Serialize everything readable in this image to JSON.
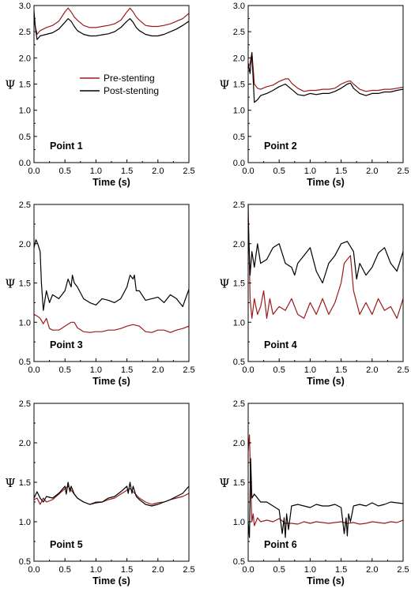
{
  "colors": {
    "pre": "#9b1b1b",
    "post": "#000000"
  },
  "legend": {
    "pre": "Pre-stenting",
    "post": "Post-stenting",
    "placement": "inside panel 1, center-right"
  },
  "chart_data": [
    {
      "type": "line",
      "panel_label": "Point 1",
      "xlabel": "Time (s)",
      "ylabel": "Ψ",
      "xlim": [
        0,
        2.5
      ],
      "ylim": [
        0,
        3.0
      ],
      "xticks": [
        "0.0",
        "0.5",
        "1.0",
        "1.5",
        "2.0",
        "2.5"
      ],
      "yticks": [
        "0.0",
        "0.5",
        "1.0",
        "1.5",
        "2.0",
        "2.5",
        "3.0"
      ],
      "series": [
        {
          "name": "Pre-stenting",
          "color": "#9b1b1b",
          "x": [
            0,
            0.02,
            0.05,
            0.1,
            0.2,
            0.3,
            0.4,
            0.5,
            0.55,
            0.6,
            0.65,
            0.7,
            0.8,
            0.9,
            1.0,
            1.1,
            1.2,
            1.3,
            1.4,
            1.5,
            1.55,
            1.6,
            1.65,
            1.7,
            1.8,
            1.9,
            2.0,
            2.1,
            2.2,
            2.3,
            2.4,
            2.5
          ],
          "y": [
            2.8,
            2.6,
            2.45,
            2.52,
            2.58,
            2.62,
            2.7,
            2.88,
            2.95,
            2.88,
            2.78,
            2.72,
            2.62,
            2.58,
            2.58,
            2.6,
            2.62,
            2.65,
            2.72,
            2.88,
            2.95,
            2.88,
            2.78,
            2.72,
            2.62,
            2.6,
            2.6,
            2.62,
            2.65,
            2.7,
            2.75,
            2.85
          ]
        },
        {
          "name": "Post-stenting",
          "color": "#000000",
          "x": [
            0,
            0.02,
            0.05,
            0.1,
            0.2,
            0.3,
            0.4,
            0.5,
            0.55,
            0.6,
            0.65,
            0.7,
            0.8,
            0.9,
            1.0,
            1.1,
            1.2,
            1.3,
            1.4,
            1.5,
            1.55,
            1.6,
            1.65,
            1.7,
            1.8,
            1.9,
            2.0,
            2.1,
            2.2,
            2.3,
            2.4,
            2.5
          ],
          "y": [
            2.9,
            2.6,
            2.35,
            2.42,
            2.45,
            2.48,
            2.55,
            2.68,
            2.75,
            2.7,
            2.6,
            2.52,
            2.45,
            2.42,
            2.42,
            2.44,
            2.46,
            2.5,
            2.58,
            2.7,
            2.75,
            2.68,
            2.58,
            2.52,
            2.45,
            2.42,
            2.42,
            2.45,
            2.5,
            2.55,
            2.62,
            2.7
          ]
        }
      ]
    },
    {
      "type": "line",
      "panel_label": "Point 2",
      "xlabel": "Time (s)",
      "ylabel": "Ψ",
      "xlim": [
        0,
        2.5
      ],
      "ylim": [
        0,
        3.0
      ],
      "xticks": [
        "0.0",
        "0.5",
        "1.0",
        "1.5",
        "2.0",
        "2.5"
      ],
      "yticks": [
        "0.0",
        "0.5",
        "1.0",
        "1.5",
        "2.0",
        "2.5",
        "3.0"
      ],
      "series": [
        {
          "name": "Pre-stenting",
          "color": "#9b1b1b",
          "x": [
            0,
            0.03,
            0.06,
            0.08,
            0.1,
            0.15,
            0.2,
            0.3,
            0.4,
            0.5,
            0.6,
            0.65,
            0.7,
            0.8,
            0.9,
            1.0,
            1.1,
            1.2,
            1.3,
            1.4,
            1.5,
            1.6,
            1.65,
            1.7,
            1.8,
            1.9,
            2.0,
            2.1,
            2.2,
            2.3,
            2.4,
            2.5
          ],
          "y": [
            1.8,
            1.9,
            2.1,
            1.8,
            1.5,
            1.42,
            1.4,
            1.45,
            1.48,
            1.55,
            1.6,
            1.6,
            1.52,
            1.42,
            1.36,
            1.38,
            1.38,
            1.4,
            1.4,
            1.42,
            1.5,
            1.55,
            1.56,
            1.5,
            1.4,
            1.36,
            1.38,
            1.38,
            1.4,
            1.4,
            1.42,
            1.44
          ]
        },
        {
          "name": "Post-stenting",
          "color": "#000000",
          "x": [
            0,
            0.03,
            0.06,
            0.08,
            0.1,
            0.15,
            0.2,
            0.3,
            0.4,
            0.5,
            0.6,
            0.7,
            0.8,
            0.9,
            1.0,
            1.1,
            1.2,
            1.3,
            1.4,
            1.5,
            1.6,
            1.65,
            1.7,
            1.8,
            1.9,
            2.0,
            2.1,
            2.2,
            2.3,
            2.4,
            2.5
          ],
          "y": [
            1.9,
            1.7,
            2.1,
            1.6,
            1.15,
            1.2,
            1.28,
            1.32,
            1.38,
            1.45,
            1.5,
            1.4,
            1.3,
            1.28,
            1.32,
            1.3,
            1.32,
            1.32,
            1.36,
            1.42,
            1.5,
            1.52,
            1.42,
            1.32,
            1.28,
            1.32,
            1.32,
            1.35,
            1.35,
            1.38,
            1.4
          ]
        }
      ]
    },
    {
      "type": "line",
      "panel_label": "Point 3",
      "xlabel": "Time (s)",
      "ylabel": "Ψ",
      "xlim": [
        0,
        2.5
      ],
      "ylim": [
        0.5,
        2.5
      ],
      "xticks": [
        "0.0",
        "0.5",
        "1.0",
        "1.5",
        "2.0",
        "2.5"
      ],
      "yticks": [
        "0.5",
        "1.0",
        "1.5",
        "2.0",
        "2.5"
      ],
      "series": [
        {
          "name": "Pre-stenting",
          "color": "#9b1b1b",
          "x": [
            0,
            0.05,
            0.1,
            0.15,
            0.2,
            0.25,
            0.3,
            0.4,
            0.5,
            0.6,
            0.65,
            0.7,
            0.8,
            0.9,
            1.0,
            1.1,
            1.2,
            1.3,
            1.4,
            1.5,
            1.6,
            1.7,
            1.8,
            1.9,
            2.0,
            2.1,
            2.2,
            2.3,
            2.4,
            2.5
          ],
          "y": [
            1.1,
            1.08,
            1.05,
            0.98,
            1.05,
            0.92,
            0.9,
            0.9,
            0.95,
            1.0,
            1.0,
            0.93,
            0.88,
            0.87,
            0.88,
            0.88,
            0.9,
            0.9,
            0.92,
            0.95,
            0.97,
            0.95,
            0.88,
            0.87,
            0.9,
            0.9,
            0.87,
            0.9,
            0.92,
            0.95
          ]
        },
        {
          "name": "Post-stenting",
          "color": "#000000",
          "x": [
            0,
            0.03,
            0.06,
            0.1,
            0.12,
            0.15,
            0.18,
            0.2,
            0.25,
            0.3,
            0.4,
            0.5,
            0.55,
            0.6,
            0.62,
            0.65,
            0.7,
            0.8,
            0.9,
            1.0,
            1.1,
            1.2,
            1.3,
            1.4,
            1.5,
            1.55,
            1.6,
            1.62,
            1.65,
            1.7,
            1.8,
            1.9,
            2.0,
            2.1,
            2.2,
            2.3,
            2.4,
            2.5
          ],
          "y": [
            1.95,
            2.05,
            2.0,
            1.9,
            1.5,
            1.15,
            1.3,
            1.4,
            1.25,
            1.35,
            1.3,
            1.4,
            1.55,
            1.45,
            1.6,
            1.5,
            1.45,
            1.3,
            1.25,
            1.22,
            1.3,
            1.28,
            1.25,
            1.3,
            1.45,
            1.6,
            1.55,
            1.6,
            1.4,
            1.4,
            1.28,
            1.3,
            1.32,
            1.25,
            1.35,
            1.3,
            1.2,
            1.42
          ]
        }
      ]
    },
    {
      "type": "line",
      "panel_label": "Point 4",
      "xlabel": "Time (s)",
      "ylabel": "Ψ",
      "xlim": [
        0,
        2.5
      ],
      "ylim": [
        0.5,
        2.5
      ],
      "xticks": [
        "0.0",
        "0.5",
        "1.0",
        "1.5",
        "2.0",
        "2.5"
      ],
      "yticks": [
        "0.5",
        "1.0",
        "1.5",
        "2.0",
        "2.5"
      ],
      "series": [
        {
          "name": "Pre-stenting",
          "color": "#9b1b1b",
          "x": [
            0,
            0.03,
            0.06,
            0.1,
            0.15,
            0.2,
            0.25,
            0.3,
            0.35,
            0.4,
            0.5,
            0.6,
            0.7,
            0.8,
            0.9,
            1.0,
            1.1,
            1.2,
            1.3,
            1.4,
            1.5,
            1.55,
            1.6,
            1.65,
            1.7,
            1.8,
            1.9,
            2.0,
            2.1,
            2.2,
            2.3,
            2.4,
            2.5
          ],
          "y": [
            2.5,
            1.3,
            1.05,
            1.3,
            1.1,
            1.2,
            1.4,
            1.05,
            1.3,
            1.1,
            1.2,
            1.15,
            1.3,
            1.1,
            1.05,
            1.25,
            1.1,
            1.3,
            1.1,
            1.25,
            1.5,
            1.75,
            1.8,
            1.85,
            1.4,
            1.1,
            1.25,
            1.1,
            1.3,
            1.15,
            1.2,
            1.05,
            1.3
          ]
        },
        {
          "name": "Post-stenting",
          "color": "#000000",
          "x": [
            0,
            0.03,
            0.06,
            0.1,
            0.15,
            0.2,
            0.3,
            0.4,
            0.5,
            0.6,
            0.7,
            0.75,
            0.8,
            0.9,
            1.0,
            1.1,
            1.2,
            1.3,
            1.4,
            1.5,
            1.6,
            1.7,
            1.75,
            1.8,
            1.9,
            2.0,
            2.1,
            2.2,
            2.3,
            2.4,
            2.5
          ],
          "y": [
            2.3,
            1.6,
            1.9,
            1.7,
            2.0,
            1.75,
            1.8,
            1.95,
            2.0,
            1.75,
            1.7,
            1.6,
            1.75,
            1.85,
            1.95,
            1.65,
            1.5,
            1.75,
            1.85,
            2.0,
            2.03,
            1.9,
            1.55,
            1.75,
            1.6,
            1.7,
            1.88,
            1.95,
            1.75,
            1.65,
            1.9
          ]
        }
      ]
    },
    {
      "type": "line",
      "panel_label": "Point 5",
      "xlabel": "Time (s)",
      "ylabel": "Ψ",
      "xlim": [
        0,
        2.5
      ],
      "ylim": [
        0.5,
        2.5
      ],
      "xticks": [
        "0.0",
        "0.5",
        "1.0",
        "1.5",
        "2.0",
        "2.5"
      ],
      "yticks": [
        "0.5",
        "1.0",
        "1.5",
        "2.0",
        "2.5"
      ],
      "series": [
        {
          "name": "Pre-stenting",
          "color": "#9b1b1b",
          "x": [
            0,
            0.05,
            0.1,
            0.15,
            0.2,
            0.3,
            0.4,
            0.5,
            0.55,
            0.6,
            0.7,
            0.8,
            0.9,
            1.0,
            1.1,
            1.2,
            1.3,
            1.4,
            1.5,
            1.55,
            1.6,
            1.7,
            1.8,
            1.9,
            2.0,
            2.1,
            2.2,
            2.3,
            2.4,
            2.5
          ],
          "y": [
            1.28,
            1.3,
            1.22,
            1.3,
            1.25,
            1.28,
            1.35,
            1.42,
            1.45,
            1.4,
            1.3,
            1.25,
            1.22,
            1.25,
            1.25,
            1.28,
            1.3,
            1.35,
            1.4,
            1.42,
            1.38,
            1.3,
            1.25,
            1.22,
            1.24,
            1.25,
            1.28,
            1.3,
            1.32,
            1.36
          ]
        },
        {
          "name": "Post-stenting",
          "color": "#000000",
          "x": [
            0,
            0.05,
            0.1,
            0.15,
            0.2,
            0.3,
            0.4,
            0.5,
            0.52,
            0.55,
            0.58,
            0.6,
            0.65,
            0.7,
            0.8,
            0.9,
            1.0,
            1.1,
            1.2,
            1.3,
            1.4,
            1.5,
            1.52,
            1.55,
            1.58,
            1.6,
            1.65,
            1.7,
            1.8,
            1.9,
            2.0,
            2.1,
            2.2,
            2.3,
            2.4,
            2.5
          ],
          "y": [
            1.3,
            1.38,
            1.3,
            1.25,
            1.32,
            1.3,
            1.36,
            1.45,
            1.35,
            1.5,
            1.38,
            1.45,
            1.35,
            1.3,
            1.25,
            1.22,
            1.24,
            1.25,
            1.3,
            1.32,
            1.38,
            1.45,
            1.36,
            1.5,
            1.36,
            1.45,
            1.32,
            1.28,
            1.22,
            1.2,
            1.22,
            1.25,
            1.28,
            1.32,
            1.36,
            1.45
          ]
        }
      ]
    },
    {
      "type": "line",
      "panel_label": "Point 6",
      "xlabel": "Time (s)",
      "ylabel": "Ψ",
      "xlim": [
        0,
        2.5
      ],
      "ylim": [
        0.5,
        2.5
      ],
      "xticks": [
        "0.0",
        "0.5",
        "1.0",
        "1.5",
        "2.0",
        "2.5"
      ],
      "yticks": [
        "0.5",
        "1.0",
        "1.5",
        "2.0",
        "2.5"
      ],
      "series": [
        {
          "name": "Pre-stenting",
          "color": "#9b1b1b",
          "x": [
            0,
            0.02,
            0.04,
            0.06,
            0.08,
            0.1,
            0.15,
            0.2,
            0.3,
            0.4,
            0.5,
            0.6,
            0.7,
            0.8,
            0.9,
            1.0,
            1.1,
            1.2,
            1.3,
            1.4,
            1.5,
            1.6,
            1.7,
            1.8,
            1.9,
            2.0,
            2.1,
            2.2,
            2.3,
            2.4,
            2.5
          ],
          "y": [
            1.9,
            2.1,
            1.5,
            1.0,
            1.1,
            0.95,
            1.05,
            1.0,
            1.02,
            1.0,
            1.04,
            0.98,
            0.98,
            0.97,
            1.0,
            0.98,
            1.0,
            0.99,
            0.98,
            0.99,
            1.0,
            0.98,
            0.99,
            0.97,
            0.98,
            1.0,
            0.99,
            0.98,
            1.0,
            0.99,
            1.02
          ]
        },
        {
          "name": "Post-stenting",
          "color": "#000000",
          "x": [
            0,
            0.02,
            0.04,
            0.06,
            0.1,
            0.15,
            0.2,
            0.3,
            0.4,
            0.5,
            0.55,
            0.58,
            0.6,
            0.62,
            0.65,
            0.7,
            0.8,
            0.9,
            1.0,
            1.1,
            1.2,
            1.3,
            1.4,
            1.5,
            1.55,
            1.58,
            1.6,
            1.62,
            1.65,
            1.7,
            1.8,
            1.9,
            2.0,
            2.1,
            2.2,
            2.3,
            2.4,
            2.5
          ],
          "y": [
            1.0,
            0.8,
            1.8,
            1.3,
            1.35,
            1.3,
            1.25,
            1.25,
            1.2,
            1.15,
            0.85,
            1.05,
            0.8,
            1.1,
            0.9,
            1.2,
            1.22,
            1.2,
            1.18,
            1.22,
            1.2,
            1.2,
            1.22,
            1.18,
            0.85,
            1.05,
            0.82,
            1.1,
            1.0,
            1.2,
            1.22,
            1.2,
            1.24,
            1.2,
            1.22,
            1.25,
            1.24,
            1.23
          ]
        }
      ]
    }
  ]
}
